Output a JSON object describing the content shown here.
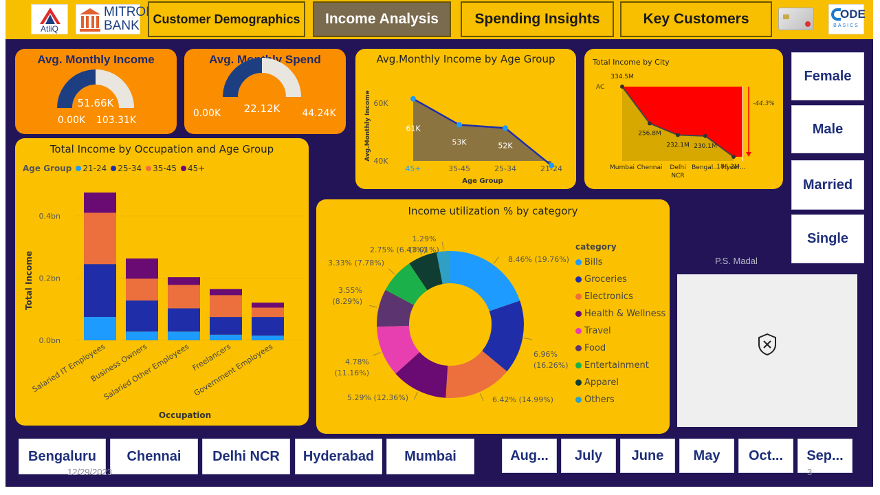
{
  "nav": {
    "logo_atliq": "AtliQ",
    "logo_bank_line1": "MITRON",
    "logo_bank_line2": "BANK",
    "logo_codebasics_line1": "ODE",
    "logo_codebasics_line2": "BASICS",
    "tabs": [
      "Customer Demographics",
      "Income Analysis",
      "Spending Insights",
      "Key Customers"
    ],
    "active_tab": "Income Analysis"
  },
  "kpis": {
    "income": {
      "title": "Avg. Monthly Income",
      "value": "51.66K",
      "min": "0.00K",
      "max": "103.31K",
      "fraction": 0.5
    },
    "spend": {
      "title": "Avg. Monthly Spend",
      "value": "22.12K",
      "min": "0.00K",
      "max": "44.24K",
      "fraction": 0.5
    }
  },
  "colors": {
    "navy": "#221457",
    "gold": "#fbc100",
    "orange": "#fb8d00",
    "dark_blue": "#1d3f82",
    "s21_24": "#1e9bff",
    "s25_34": "#1f2ea8",
    "s35_45": "#ec6f3e",
    "s45_plus": "#6a0b73",
    "red": "#ff0000"
  },
  "age_income_chart": {
    "title": "Avg.Monthly Income by Age Group",
    "xlabel": "Age Group",
    "ylabel": "Avg.Monthly Income",
    "yticks": [
      "60K",
      "40K"
    ],
    "categories": [
      "45+",
      "35-45",
      "25-34",
      "21-24"
    ],
    "labels": [
      "61K",
      "53K",
      "52K",
      ""
    ]
  },
  "city_chart": {
    "title": "Total Income by City",
    "ac_label": "AC",
    "categories": [
      "Mumbai",
      "Chennai",
      "Delhi NCR",
      "Bengal...",
      "Hyder..."
    ],
    "category_lines": [
      [
        "Mumbai"
      ],
      [
        "Chennai"
      ],
      [
        "Delhi",
        "NCR"
      ],
      [
        "Bengal..."
      ],
      [
        "Hyder..."
      ]
    ],
    "labels": [
      "334.5M",
      "256.8M",
      "232.1M",
      "230.1M",
      "186.2M"
    ],
    "delta_label": "-44.3%"
  },
  "occupation_chart": {
    "title": "Total Income by Occupation and Age Group",
    "legend_title": "Age Group",
    "legend": [
      "21-24",
      "25-34",
      "35-45",
      "45+"
    ],
    "yticks": [
      "0.4bn",
      "0.2bn",
      "0.0bn"
    ],
    "ylabel": "Total Income",
    "xlabel": "Occupation",
    "categories": [
      "Salaried IT Employees",
      "Business Owners",
      "Salaried Other Employees",
      "Freelancers",
      "Government Employees"
    ]
  },
  "donut_chart": {
    "title": "Income utilization % by category",
    "legend_title": "category",
    "legend": [
      "Bills",
      "Groceries",
      "Electronics",
      "Health & Wellness",
      "Travel",
      "Food",
      "Entertainment",
      "Apparel",
      "Others"
    ],
    "label_lines": [
      [
        "8.46% (19.76%)"
      ],
      [
        "6.96%",
        "(16.26%)"
      ],
      [
        "6.42% (14.99%)"
      ],
      [
        "5.29% (12.36%)"
      ],
      [
        "4.78%",
        "(11.16%)"
      ],
      [
        "3.55%",
        "(8.29%)"
      ],
      [
        "3.33% (7.78%)"
      ],
      [
        "2.75% (6.41%)"
      ],
      [
        "1.29%",
        "(3.01%)"
      ]
    ]
  },
  "side_slicers": [
    "Female",
    "Male",
    "Married",
    "Single"
  ],
  "placeholder_caption": "P.S. Madal",
  "city_slicers": [
    "Bengaluru",
    "Chennai",
    "Delhi NCR",
    "Hyderabad",
    "Mumbai"
  ],
  "month_slicers": [
    "Aug...",
    "July",
    "June",
    "May",
    "Oct...",
    "Sep..."
  ],
  "footer": {
    "date": "12/29/2023",
    "page": "3"
  },
  "chart_data": [
    {
      "type": "area",
      "title": "Avg.Monthly Income by Age Group",
      "xlabel": "Age Group",
      "ylabel": "Avg.Monthly Income",
      "categories": [
        "45+",
        "35-45",
        "25-34",
        "21-24"
      ],
      "values": [
        61000,
        53000,
        52000,
        40500
      ],
      "ylim": [
        40000,
        62000
      ]
    },
    {
      "type": "area",
      "title": "Total Income by City",
      "categories": [
        "Mumbai",
        "Chennai",
        "Delhi NCR",
        "Bengal...",
        "Hyder..."
      ],
      "values": [
        334.5,
        256.8,
        232.1,
        230.1,
        186.2
      ],
      "ylim": [
        0,
        340
      ]
    },
    {
      "type": "bar",
      "title": "Total Income by Occupation and Age Group",
      "xlabel": "Occupation",
      "ylabel": "Total Income",
      "categories": [
        "Salaried IT Employees",
        "Business Owners",
        "Salaried Other Employees",
        "Freelancers",
        "Government Employees"
      ],
      "series": [
        {
          "name": "21-24",
          "values": [
            0.075,
            0.028,
            0.028,
            0.018,
            0.015
          ]
        },
        {
          "name": "25-34",
          "values": [
            0.17,
            0.1,
            0.075,
            0.057,
            0.06
          ]
        },
        {
          "name": "35-45",
          "values": [
            0.165,
            0.07,
            0.075,
            0.07,
            0.03
          ]
        },
        {
          "name": "45+",
          "values": [
            0.065,
            0.065,
            0.025,
            0.02,
            0.016
          ]
        }
      ],
      "ylim": [
        0,
        0.5
      ]
    },
    {
      "type": "pie",
      "title": "Income utilization % by category",
      "categories": [
        "Bills",
        "Groceries",
        "Electronics",
        "Health & Wellness",
        "Travel",
        "Food",
        "Entertainment",
        "Apparel",
        "Others"
      ],
      "values": [
        19.76,
        16.26,
        14.99,
        12.36,
        11.16,
        8.29,
        7.78,
        6.41,
        3.01
      ]
    }
  ]
}
